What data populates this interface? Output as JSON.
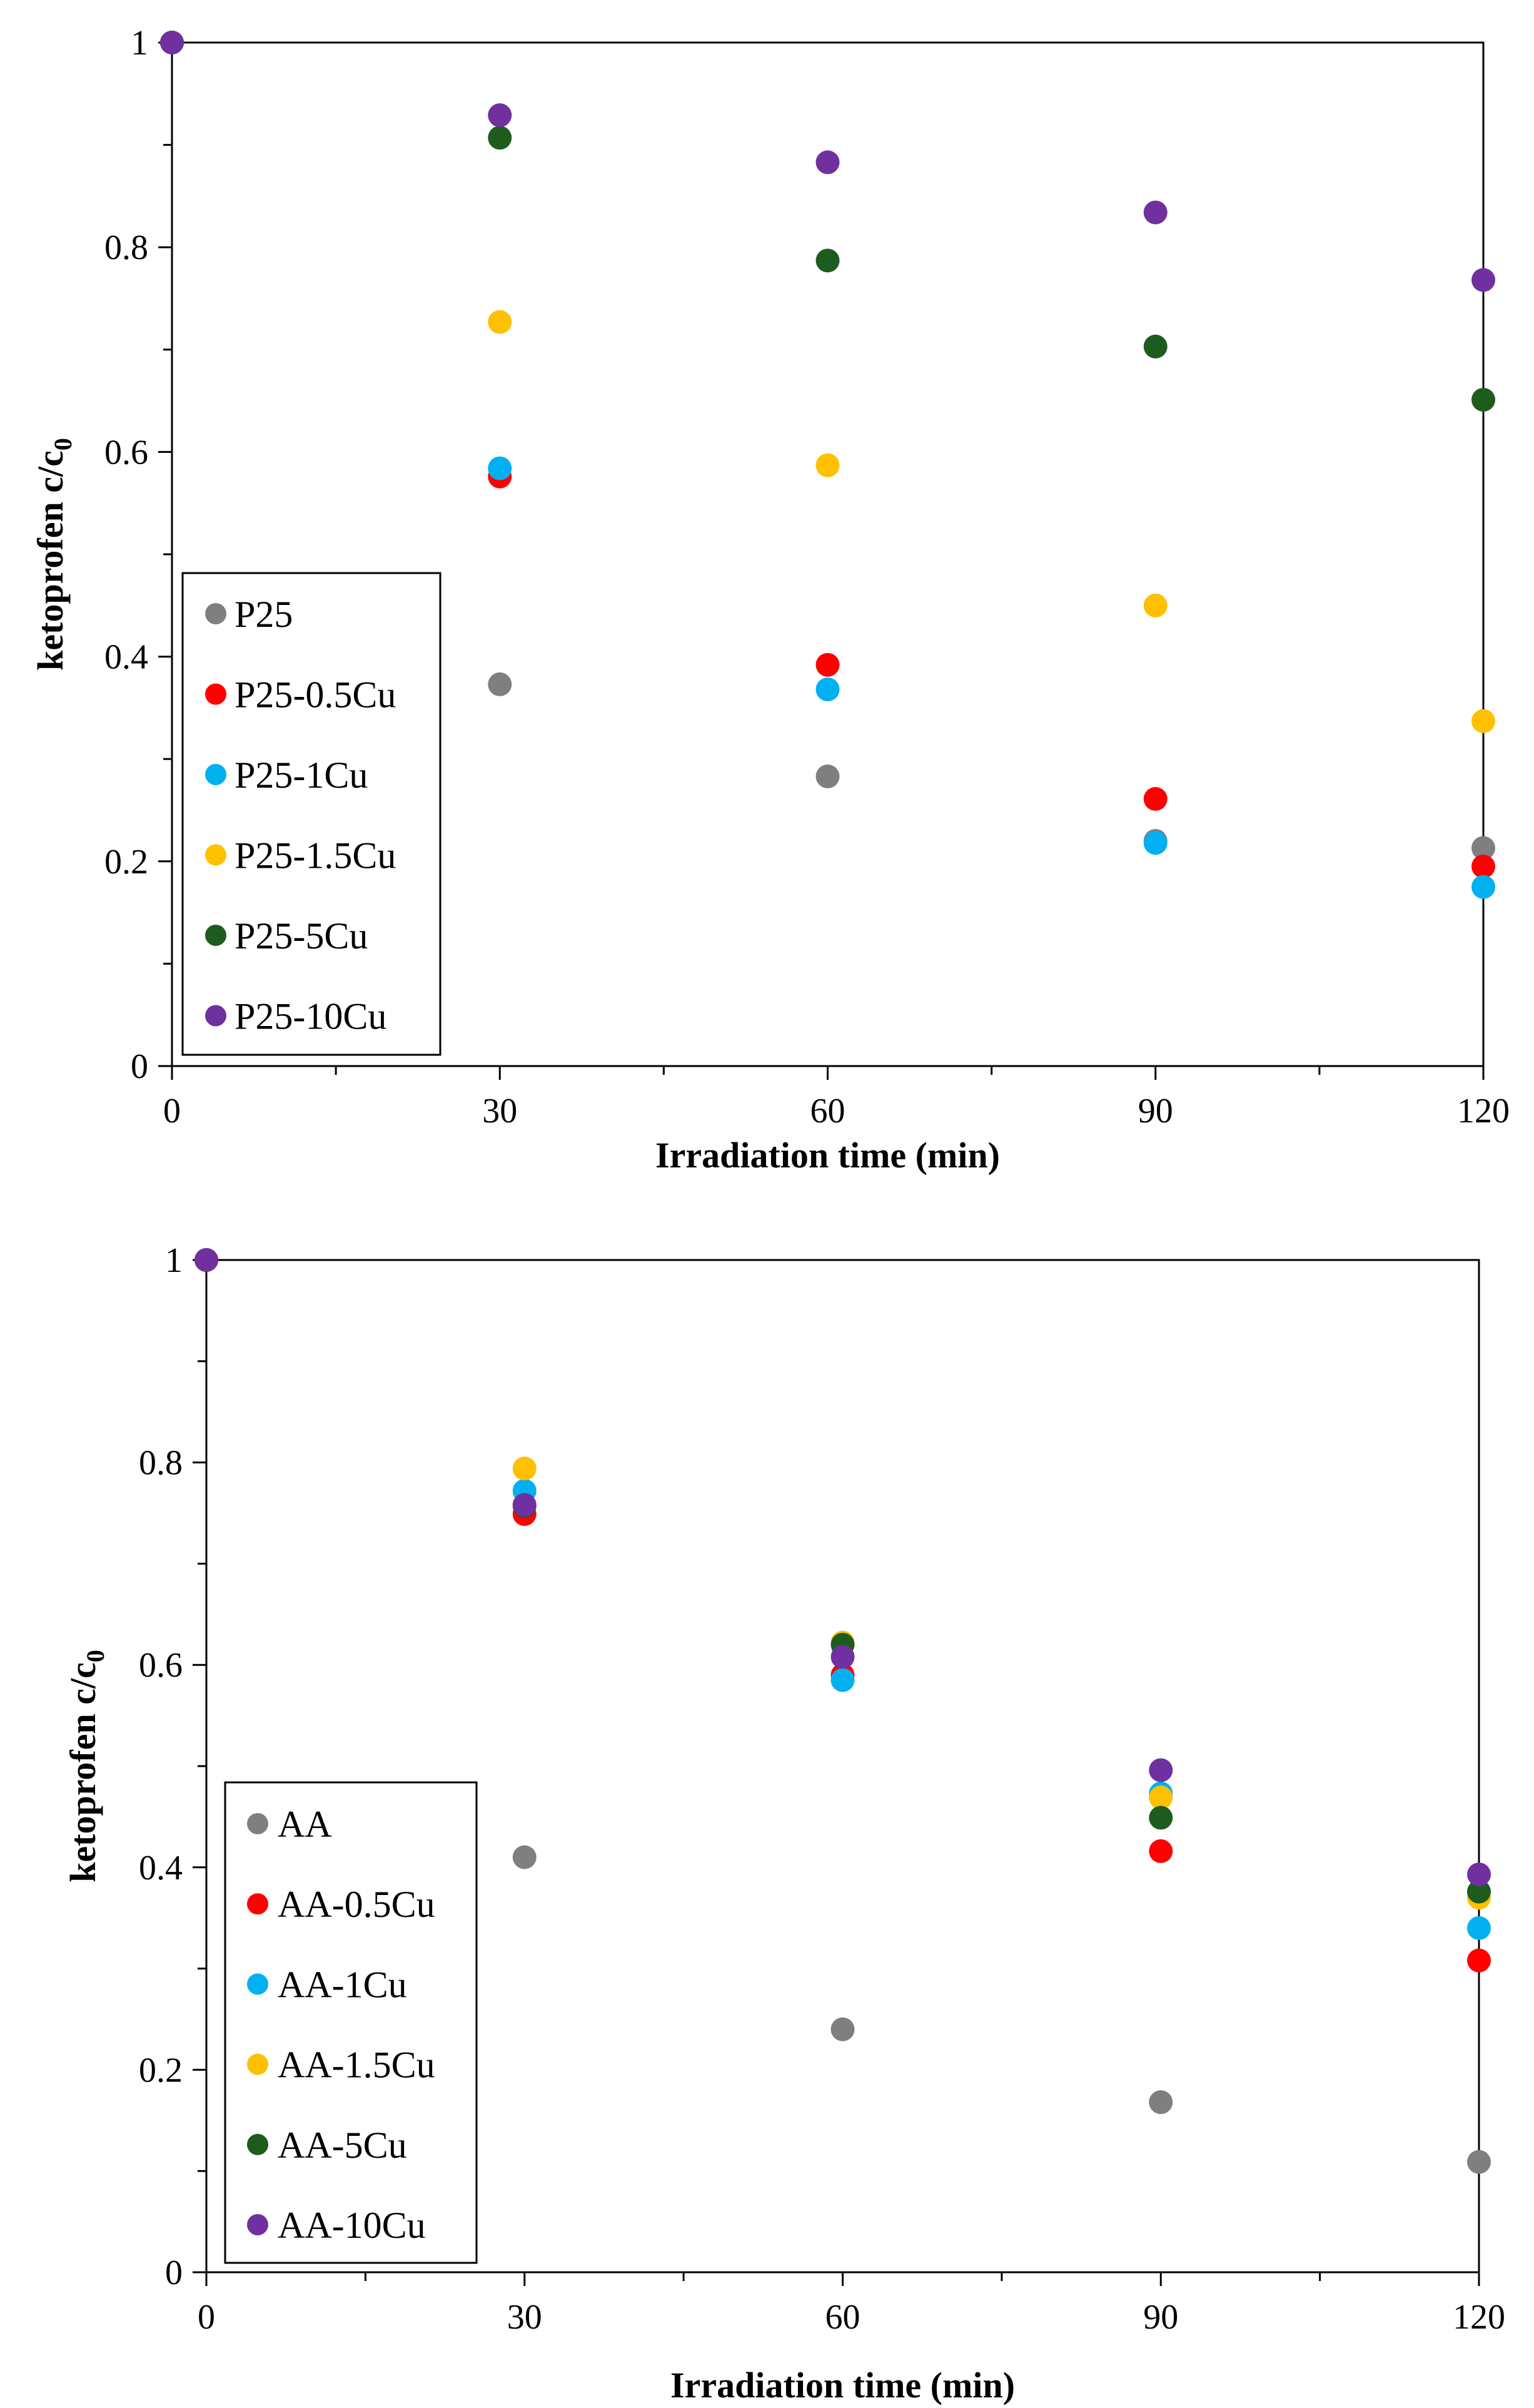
{
  "chart_data": [
    {
      "type": "scatter",
      "title": "",
      "xlabel": "Irradiation time (min)",
      "ylabel": "ketoprofen c/c",
      "ylabel_subscript": "0",
      "x": [
        0,
        30,
        60,
        90,
        120
      ],
      "xlim": [
        0,
        120
      ],
      "ylim": [
        0,
        1
      ],
      "xticks": [
        "0",
        "30",
        "60",
        "90",
        "120"
      ],
      "yticks": [
        "0",
        "0.2",
        "0.4",
        "0.6",
        "0.8",
        "1"
      ],
      "legend_position": "bottom-left",
      "series": [
        {
          "name": "P25",
          "color": "#7f7f7f",
          "values": [
            1,
            0.373,
            0.283,
            0.22,
            0.213
          ]
        },
        {
          "name": "P25-0.5Cu",
          "color": "#ff0000",
          "values": [
            1,
            0.576,
            0.392,
            0.261,
            0.195
          ]
        },
        {
          "name": "P25-1Cu",
          "color": "#00b0f0",
          "values": [
            1,
            0.584,
            0.368,
            0.218,
            0.175
          ]
        },
        {
          "name": "P25-1.5Cu",
          "color": "#ffc000",
          "values": [
            1,
            0.727,
            0.587,
            0.45,
            0.337
          ]
        },
        {
          "name": "P25-5Cu",
          "color": "#1e5c1e",
          "values": [
            1,
            0.907,
            0.787,
            0.703,
            0.651
          ]
        },
        {
          "name": "P25-10Cu",
          "color": "#7030a0",
          "values": [
            1,
            0.929,
            0.883,
            0.834,
            0.768
          ]
        }
      ]
    },
    {
      "type": "scatter",
      "title": "",
      "xlabel": "Irradiation time (min)",
      "ylabel": "ketoprofen c/c",
      "ylabel_subscript": "0",
      "x": [
        0,
        30,
        60,
        90,
        120
      ],
      "xlim": [
        0,
        120
      ],
      "ylim": [
        0,
        1
      ],
      "xticks": [
        "0",
        "30",
        "60",
        "90",
        "120"
      ],
      "yticks": [
        "0",
        "0.2",
        "0.4",
        "0.6",
        "0.8",
        "1"
      ],
      "legend_position": "bottom-left",
      "series": [
        {
          "name": "AA",
          "color": "#7f7f7f",
          "values": [
            1,
            0.41,
            0.24,
            0.168,
            0.109
          ]
        },
        {
          "name": "AA-0.5Cu",
          "color": "#ff0000",
          "values": [
            1,
            0.749,
            0.59,
            0.416,
            0.308
          ]
        },
        {
          "name": "AA-1Cu",
          "color": "#00b0f0",
          "values": [
            1,
            0.772,
            0.585,
            0.473,
            0.34
          ]
        },
        {
          "name": "AA-1.5Cu",
          "color": "#ffc000",
          "values": [
            1,
            0.794,
            0.622,
            0.469,
            0.37
          ]
        },
        {
          "name": "AA-5Cu",
          "color": "#1e5c1e",
          "values": [
            1,
            0.757,
            0.62,
            0.449,
            0.376
          ]
        },
        {
          "name": "AA-10Cu",
          "color": "#7030a0",
          "values": [
            1,
            0.758,
            0.608,
            0.496,
            0.393
          ]
        }
      ]
    }
  ]
}
